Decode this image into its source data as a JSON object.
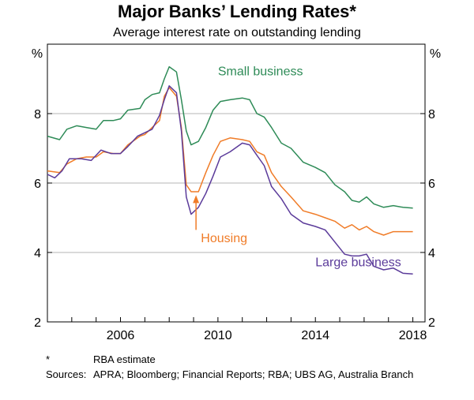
{
  "title": "Major Banks’ Lending Rates*",
  "subtitle": "Average interest rate on outstanding lending",
  "footnote": {
    "key": "*",
    "text": "RBA estimate"
  },
  "sources": {
    "key": "Sources:",
    "text": "APRA; Bloomberg; Financial Reports; RBA; UBS AG, Australia Branch"
  },
  "chart_data": {
    "type": "line",
    "title": "Major Banks’ Lending Rates*",
    "subtitle": "Average interest rate on outstanding lending",
    "y_unit_left": "%",
    "y_unit_right": "%",
    "ylim": [
      2,
      10
    ],
    "yticks": [
      "2",
      "4",
      "6",
      "8"
    ],
    "xlim": [
      2003.0,
      2018.5
    ],
    "xticks": [
      "2006",
      "2010",
      "2014",
      "2018"
    ],
    "grid": "horizontal",
    "colors": {
      "small": "#2e8b57",
      "housing": "#f07c28",
      "large": "#5b3b9a",
      "grid": "#b5b5b5"
    },
    "series": [
      {
        "name": "Small business",
        "color": "#2e8b57",
        "points": [
          [
            2003.0,
            7.35
          ],
          [
            2003.5,
            7.25
          ],
          [
            2003.8,
            7.55
          ],
          [
            2004.2,
            7.65
          ],
          [
            2004.6,
            7.6
          ],
          [
            2005.0,
            7.55
          ],
          [
            2005.3,
            7.8
          ],
          [
            2005.7,
            7.8
          ],
          [
            2006.0,
            7.85
          ],
          [
            2006.3,
            8.1
          ],
          [
            2006.8,
            8.15
          ],
          [
            2007.0,
            8.4
          ],
          [
            2007.3,
            8.55
          ],
          [
            2007.6,
            8.6
          ],
          [
            2007.8,
            9.0
          ],
          [
            2008.0,
            9.35
          ],
          [
            2008.3,
            9.2
          ],
          [
            2008.5,
            8.4
          ],
          [
            2008.7,
            7.5
          ],
          [
            2008.9,
            7.1
          ],
          [
            2009.2,
            7.2
          ],
          [
            2009.5,
            7.6
          ],
          [
            2009.8,
            8.1
          ],
          [
            2010.1,
            8.35
          ],
          [
            2010.5,
            8.4
          ],
          [
            2011.0,
            8.45
          ],
          [
            2011.3,
            8.4
          ],
          [
            2011.6,
            8.0
          ],
          [
            2011.9,
            7.9
          ],
          [
            2012.2,
            7.6
          ],
          [
            2012.6,
            7.15
          ],
          [
            2013.0,
            7.0
          ],
          [
            2013.5,
            6.6
          ],
          [
            2014.0,
            6.45
          ],
          [
            2014.4,
            6.3
          ],
          [
            2014.8,
            5.95
          ],
          [
            2015.2,
            5.75
          ],
          [
            2015.5,
            5.5
          ],
          [
            2015.8,
            5.45
          ],
          [
            2016.1,
            5.6
          ],
          [
            2016.4,
            5.4
          ],
          [
            2016.8,
            5.3
          ],
          [
            2017.2,
            5.35
          ],
          [
            2017.6,
            5.3
          ],
          [
            2018.0,
            5.28
          ]
        ]
      },
      {
        "name": "Housing",
        "color": "#f07c28",
        "points": [
          [
            2003.0,
            6.35
          ],
          [
            2003.5,
            6.3
          ],
          [
            2003.8,
            6.55
          ],
          [
            2004.2,
            6.7
          ],
          [
            2004.6,
            6.75
          ],
          [
            2005.0,
            6.75
          ],
          [
            2005.3,
            6.9
          ],
          [
            2005.7,
            6.85
          ],
          [
            2006.0,
            6.85
          ],
          [
            2006.3,
            7.1
          ],
          [
            2006.8,
            7.35
          ],
          [
            2007.0,
            7.4
          ],
          [
            2007.3,
            7.6
          ],
          [
            2007.6,
            7.8
          ],
          [
            2007.8,
            8.5
          ],
          [
            2008.0,
            8.75
          ],
          [
            2008.3,
            8.5
          ],
          [
            2008.5,
            7.6
          ],
          [
            2008.7,
            5.95
          ],
          [
            2008.9,
            5.75
          ],
          [
            2009.2,
            5.75
          ],
          [
            2009.5,
            6.3
          ],
          [
            2009.8,
            6.8
          ],
          [
            2010.1,
            7.2
          ],
          [
            2010.5,
            7.3
          ],
          [
            2011.0,
            7.25
          ],
          [
            2011.3,
            7.2
          ],
          [
            2011.6,
            6.9
          ],
          [
            2011.9,
            6.8
          ],
          [
            2012.2,
            6.3
          ],
          [
            2012.6,
            5.9
          ],
          [
            2013.0,
            5.6
          ],
          [
            2013.5,
            5.2
          ],
          [
            2014.0,
            5.1
          ],
          [
            2014.4,
            5.0
          ],
          [
            2014.8,
            4.9
          ],
          [
            2015.2,
            4.7
          ],
          [
            2015.5,
            4.8
          ],
          [
            2015.8,
            4.65
          ],
          [
            2016.1,
            4.75
          ],
          [
            2016.4,
            4.6
          ],
          [
            2016.8,
            4.5
          ],
          [
            2017.2,
            4.6
          ],
          [
            2017.6,
            4.6
          ],
          [
            2018.0,
            4.6
          ]
        ]
      },
      {
        "name": "Large business",
        "color": "#5b3b9a",
        "points": [
          [
            2003.0,
            6.25
          ],
          [
            2003.3,
            6.15
          ],
          [
            2003.6,
            6.35
          ],
          [
            2003.9,
            6.7
          ],
          [
            2004.4,
            6.7
          ],
          [
            2004.8,
            6.65
          ],
          [
            2005.2,
            6.95
          ],
          [
            2005.6,
            6.85
          ],
          [
            2006.0,
            6.85
          ],
          [
            2006.3,
            7.05
          ],
          [
            2006.7,
            7.35
          ],
          [
            2007.0,
            7.45
          ],
          [
            2007.3,
            7.55
          ],
          [
            2007.6,
            7.95
          ],
          [
            2007.8,
            8.4
          ],
          [
            2008.0,
            8.8
          ],
          [
            2008.3,
            8.6
          ],
          [
            2008.5,
            7.5
          ],
          [
            2008.7,
            5.6
          ],
          [
            2008.9,
            5.1
          ],
          [
            2009.2,
            5.3
          ],
          [
            2009.5,
            5.7
          ],
          [
            2009.8,
            6.2
          ],
          [
            2010.1,
            6.75
          ],
          [
            2010.5,
            6.9
          ],
          [
            2011.0,
            7.15
          ],
          [
            2011.3,
            7.1
          ],
          [
            2011.6,
            6.8
          ],
          [
            2011.9,
            6.5
          ],
          [
            2012.2,
            5.9
          ],
          [
            2012.6,
            5.55
          ],
          [
            2013.0,
            5.1
          ],
          [
            2013.5,
            4.85
          ],
          [
            2014.0,
            4.75
          ],
          [
            2014.4,
            4.65
          ],
          [
            2014.8,
            4.3
          ],
          [
            2015.2,
            3.95
          ],
          [
            2015.5,
            3.9
          ],
          [
            2015.8,
            3.9
          ],
          [
            2016.1,
            3.95
          ],
          [
            2016.4,
            3.6
          ],
          [
            2016.8,
            3.5
          ],
          [
            2017.2,
            3.55
          ],
          [
            2017.6,
            3.4
          ],
          [
            2018.0,
            3.38
          ]
        ]
      }
    ],
    "annotations": [
      {
        "label": "Small business",
        "series": "Small business",
        "x": 2010.0,
        "y": 9.1
      },
      {
        "label": "Housing",
        "series": "Housing",
        "x": 2009.3,
        "y": 4.3
      },
      {
        "label": "Large business",
        "series": "Large business",
        "x": 2014.0,
        "y": 3.6
      }
    ],
    "arrow": {
      "x": 2009.1,
      "y_from": 4.65,
      "y_to": 5.65,
      "color": "#f07c28"
    }
  }
}
